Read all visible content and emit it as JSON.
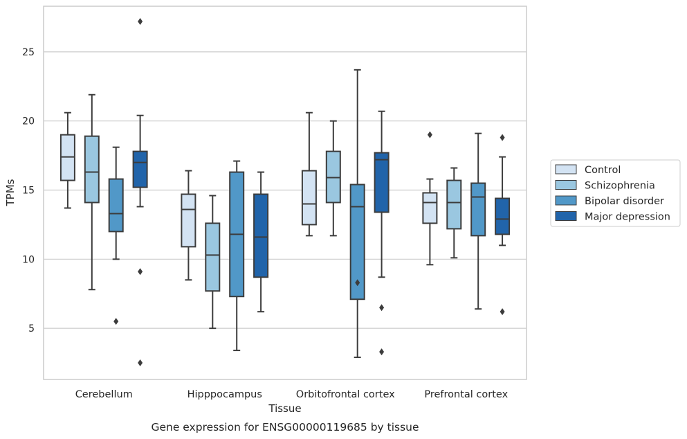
{
  "chart_data": {
    "type": "box",
    "title": "Gene expression for ENSG00000119685 by tissue",
    "xlabel": "Tissue",
    "ylabel": "TPMs",
    "ylim": [
      1.3,
      28.3
    ],
    "yticks": [
      5,
      10,
      15,
      20,
      25
    ],
    "grid": "horizontal",
    "legend_position": "right",
    "categories": [
      "Cerebellum",
      "Hipppocampus",
      "Orbitofrontal cortex",
      "Prefrontal cortex"
    ],
    "series": [
      {
        "name": "Control",
        "color": "#d3e3f3",
        "boxes": [
          {
            "q1": 15.7,
            "median": 17.4,
            "q3": 19.0,
            "whislo": 13.7,
            "whishi": 20.6,
            "outliers": []
          },
          {
            "q1": 10.9,
            "median": 13.6,
            "q3": 14.7,
            "whislo": 8.5,
            "whishi": 16.4,
            "outliers": []
          },
          {
            "q1": 12.5,
            "median": 14.0,
            "q3": 16.4,
            "whislo": 11.7,
            "whishi": 20.6,
            "outliers": []
          },
          {
            "q1": 12.6,
            "median": 14.1,
            "q3": 14.8,
            "whislo": 9.6,
            "whishi": 15.8,
            "outliers": [
              19.0
            ]
          }
        ]
      },
      {
        "name": "Schizophrenia",
        "color": "#9ac7e0",
        "boxes": [
          {
            "q1": 14.1,
            "median": 16.3,
            "q3": 18.9,
            "whislo": 7.8,
            "whishi": 21.9,
            "outliers": []
          },
          {
            "q1": 7.7,
            "median": 10.3,
            "q3": 12.6,
            "whislo": 5.0,
            "whishi": 14.6,
            "outliers": []
          },
          {
            "q1": 14.1,
            "median": 15.9,
            "q3": 17.8,
            "whislo": 11.7,
            "whishi": 20.0,
            "outliers": []
          },
          {
            "q1": 12.2,
            "median": 14.1,
            "q3": 15.7,
            "whislo": 10.1,
            "whishi": 16.6,
            "outliers": []
          }
        ]
      },
      {
        "name": "Bipolar disorder",
        "color": "#5198c8",
        "boxes": [
          {
            "q1": 12.0,
            "median": 13.3,
            "q3": 15.8,
            "whislo": 10.0,
            "whishi": 18.1,
            "outliers": [
              5.5
            ]
          },
          {
            "q1": 7.3,
            "median": 11.8,
            "q3": 16.3,
            "whislo": 3.4,
            "whishi": 17.1,
            "outliers": []
          },
          {
            "q1": 7.1,
            "median": 13.8,
            "q3": 15.4,
            "whislo": 2.9,
            "whishi": 23.7,
            "outliers": [
              8.3
            ]
          },
          {
            "q1": 11.7,
            "median": 14.5,
            "q3": 15.5,
            "whislo": 6.4,
            "whishi": 19.1,
            "outliers": []
          }
        ]
      },
      {
        "name": "Major depression",
        "color": "#2164aa",
        "boxes": [
          {
            "q1": 15.2,
            "median": 17.0,
            "q3": 17.8,
            "whislo": 13.8,
            "whishi": 20.4,
            "outliers": [
              27.2,
              9.1,
              2.5
            ]
          },
          {
            "q1": 8.7,
            "median": 11.6,
            "q3": 14.7,
            "whislo": 6.2,
            "whishi": 16.3,
            "outliers": []
          },
          {
            "q1": 13.4,
            "median": 17.2,
            "q3": 17.7,
            "whislo": 8.7,
            "whishi": 20.7,
            "outliers": [
              6.5,
              3.3
            ]
          },
          {
            "q1": 11.8,
            "median": 12.9,
            "q3": 14.4,
            "whislo": 11.0,
            "whishi": 17.4,
            "outliers": [
              18.8,
              6.2
            ]
          }
        ]
      }
    ]
  }
}
